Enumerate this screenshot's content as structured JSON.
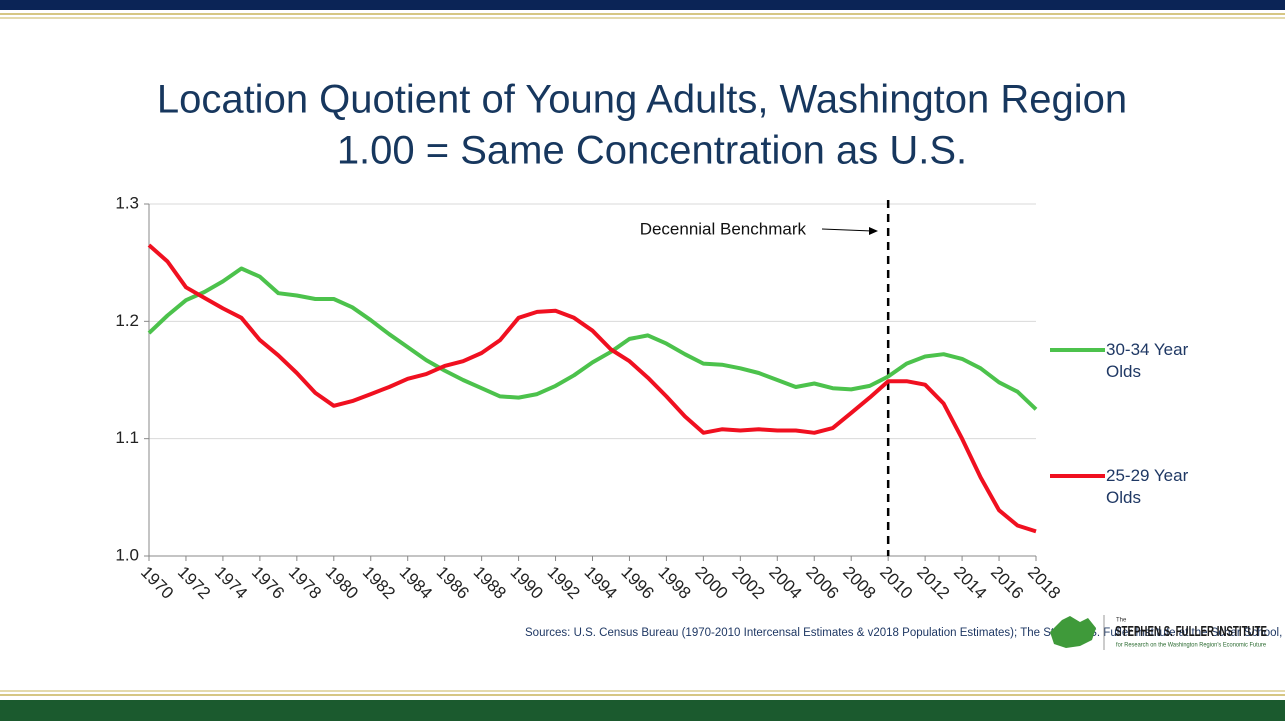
{
  "chart_data": {
    "type": "line",
    "title": "Location Quotient of Young Adults, Washington Region",
    "subtitle": "1.00 = Same Concentration as U.S.",
    "x": [
      1970,
      1971,
      1972,
      1973,
      1974,
      1975,
      1976,
      1977,
      1978,
      1979,
      1980,
      1981,
      1982,
      1983,
      1984,
      1985,
      1986,
      1987,
      1988,
      1989,
      1990,
      1991,
      1992,
      1993,
      1994,
      1995,
      1996,
      1997,
      1998,
      1999,
      2000,
      2001,
      2002,
      2003,
      2004,
      2005,
      2006,
      2007,
      2008,
      2009,
      2010,
      2011,
      2012,
      2013,
      2014,
      2015,
      2016,
      2017,
      2018
    ],
    "xlim": [
      1970,
      2018
    ],
    "xticks": [
      1970,
      1972,
      1974,
      1976,
      1978,
      1980,
      1982,
      1984,
      1986,
      1988,
      1990,
      1992,
      1994,
      1996,
      1998,
      2000,
      2002,
      2004,
      2006,
      2008,
      2010,
      2012,
      2014,
      2016,
      2018
    ],
    "ylim": [
      1.0,
      1.3
    ],
    "yticks": [
      {
        "value": 1,
        "label": "1.0"
      },
      1.1,
      1.2,
      1.3
    ],
    "grid": true,
    "legend": "right",
    "series": [
      {
        "name": "30-34 Year Olds",
        "color": "#4cc24c",
        "values": [
          1.19,
          1.205,
          1.218,
          1.225,
          1.234,
          1.245,
          1.238,
          1.224,
          1.222,
          1.219,
          1.219,
          1.212,
          1.201,
          1.189,
          1.178,
          1.167,
          1.158,
          1.15,
          1.143,
          1.136,
          1.135,
          1.138,
          1.145,
          1.154,
          1.165,
          1.174,
          1.185,
          1.188,
          1.181,
          1.172,
          1.164,
          1.163,
          1.16,
          1.156,
          1.15,
          1.144,
          1.147,
          1.143,
          1.142,
          1.145,
          1.153,
          1.164,
          1.17,
          1.172,
          1.168,
          1.16,
          1.148,
          1.14,
          1.125
        ]
      },
      {
        "name": "25-29 Year Olds",
        "color": "#f01020",
        "values": [
          1.265,
          1.251,
          1.229,
          1.22,
          1.211,
          1.203,
          1.184,
          1.171,
          1.156,
          1.139,
          1.128,
          1.132,
          1.138,
          1.144,
          1.151,
          1.155,
          1.162,
          1.166,
          1.173,
          1.184,
          1.203,
          1.208,
          1.209,
          1.203,
          1.192,
          1.176,
          1.166,
          1.152,
          1.136,
          1.119,
          1.105,
          1.108,
          1.107,
          1.108,
          1.107,
          1.107,
          1.105,
          1.109,
          1.122,
          1.135,
          1.149,
          1.149,
          1.146,
          1.13,
          1.1,
          1.067,
          1.039,
          1.026,
          1.021
        ]
      }
    ],
    "annotation": {
      "text": "Decennial Benchmark",
      "x": 2010
    }
  },
  "footer": {
    "source": "Sources: U.S. Census Bureau (1970-2010 Intercensal Estimates & v2018 Population Estimates); The Stephen S. Fuller Institute at the Schar School, GMU",
    "logo_small": "The",
    "logo_name": "STEPHEN S. FULLER INSTITUTE",
    "logo_tagline": "for Research on the Washington Region's Economic Future"
  }
}
